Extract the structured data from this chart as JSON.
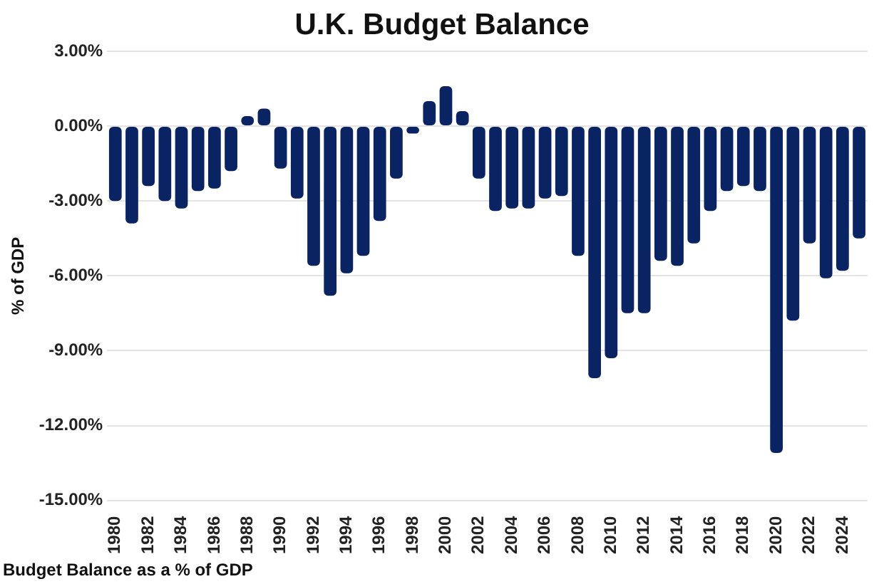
{
  "chart_data": {
    "type": "bar",
    "title": "U.K. Budget Balance",
    "ylabel": "% of GDP",
    "categories": [
      "1980",
      null,
      "1982",
      null,
      "1984",
      null,
      "1986",
      null,
      "1988",
      null,
      "1990",
      null,
      "1992",
      null,
      "1994",
      null,
      "1996",
      null,
      "1998",
      null,
      "2000",
      null,
      "2002",
      null,
      "2004",
      null,
      "2006",
      null,
      "2008",
      null,
      "2010",
      null,
      "2012",
      null,
      "2014",
      null,
      "2016",
      null,
      "2018",
      null,
      "2020",
      null,
      "2022",
      null,
      "2024",
      null
    ],
    "values": [
      -3.0,
      -3.9,
      -2.4,
      -3.0,
      -3.3,
      -2.6,
      -2.5,
      -1.8,
      0.4,
      0.7,
      -1.7,
      -2.9,
      -5.6,
      -6.8,
      -5.9,
      -5.2,
      -3.8,
      -2.1,
      -0.3,
      1.0,
      1.6,
      0.6,
      -2.1,
      -3.4,
      -3.3,
      -3.3,
      -2.9,
      -2.8,
      -5.2,
      -10.1,
      -9.3,
      -7.5,
      -7.5,
      -5.4,
      -5.6,
      -4.7,
      -3.4,
      -2.6,
      -2.4,
      -2.6,
      -13.1,
      -7.8,
      -4.7,
      -6.1,
      -5.8,
      -4.5
    ],
    "color": "#0a2463",
    "ylim": [
      -15,
      3
    ],
    "yticks": [
      {
        "value": -15,
        "label": "-15.00%"
      },
      {
        "value": -12,
        "label": "-12.00%"
      },
      {
        "value": -9,
        "label": "-9.00%"
      },
      {
        "value": -6,
        "label": "-6.00%"
      },
      {
        "value": -3,
        "label": "-3.00%"
      },
      {
        "value": 0,
        "label": "0.00%"
      },
      {
        "value": 3,
        "label": "3.00%"
      }
    ],
    "grid": "y",
    "annotations": [
      "Budget Balance as a % of GDP"
    ]
  }
}
